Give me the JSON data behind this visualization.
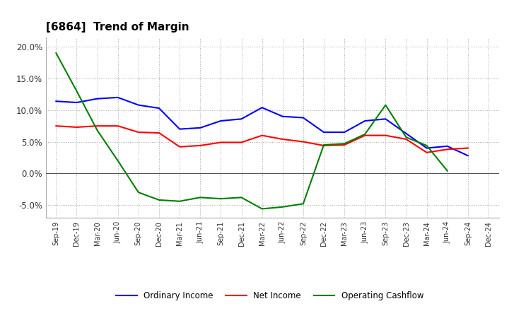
{
  "title": "[6864]  Trend of Margin",
  "title_fontsize": 11,
  "title_fontweight": "bold",
  "background_color": "#ffffff",
  "plot_bg_color": "#ffffff",
  "grid_color": "#aaaaaa",
  "ylim": [
    -0.07,
    0.215
  ],
  "yticks": [
    -0.05,
    0.0,
    0.05,
    0.1,
    0.15,
    0.2
  ],
  "x_labels": [
    "Sep-19",
    "Dec-19",
    "Mar-20",
    "Jun-20",
    "Sep-20",
    "Dec-20",
    "Mar-21",
    "Jun-21",
    "Sep-21",
    "Dec-21",
    "Mar-22",
    "Jun-22",
    "Sep-22",
    "Dec-22",
    "Mar-23",
    "Jun-23",
    "Sep-23",
    "Dec-23",
    "Mar-24",
    "Jun-24",
    "Sep-24",
    "Dec-24"
  ],
  "ordinary_income": [
    0.114,
    0.112,
    0.118,
    0.12,
    0.108,
    0.103,
    0.07,
    0.072,
    0.083,
    0.086,
    0.104,
    0.09,
    0.088,
    0.065,
    0.065,
    0.083,
    0.086,
    0.063,
    0.04,
    0.043,
    0.028,
    null
  ],
  "net_income": [
    0.075,
    0.073,
    0.075,
    0.075,
    0.065,
    0.064,
    0.042,
    0.044,
    0.049,
    0.049,
    0.06,
    0.054,
    0.05,
    0.044,
    0.045,
    0.06,
    0.06,
    0.054,
    0.033,
    0.038,
    0.04,
    null
  ],
  "operating_cashflow": [
    0.19,
    0.13,
    0.068,
    0.02,
    -0.03,
    -0.042,
    -0.044,
    -0.038,
    -0.04,
    -0.038,
    -0.056,
    -0.053,
    -0.048,
    0.045,
    0.047,
    0.062,
    0.108,
    0.057,
    0.044,
    0.004,
    null,
    null
  ],
  "line_colors": {
    "ordinary_income": "#0000ff",
    "net_income": "#ff0000",
    "operating_cashflow": "#008000"
  },
  "line_width": 1.5,
  "legend_labels": {
    "ordinary_income": "Ordinary Income",
    "net_income": "Net Income",
    "operating_cashflow": "Operating Cashflow"
  }
}
